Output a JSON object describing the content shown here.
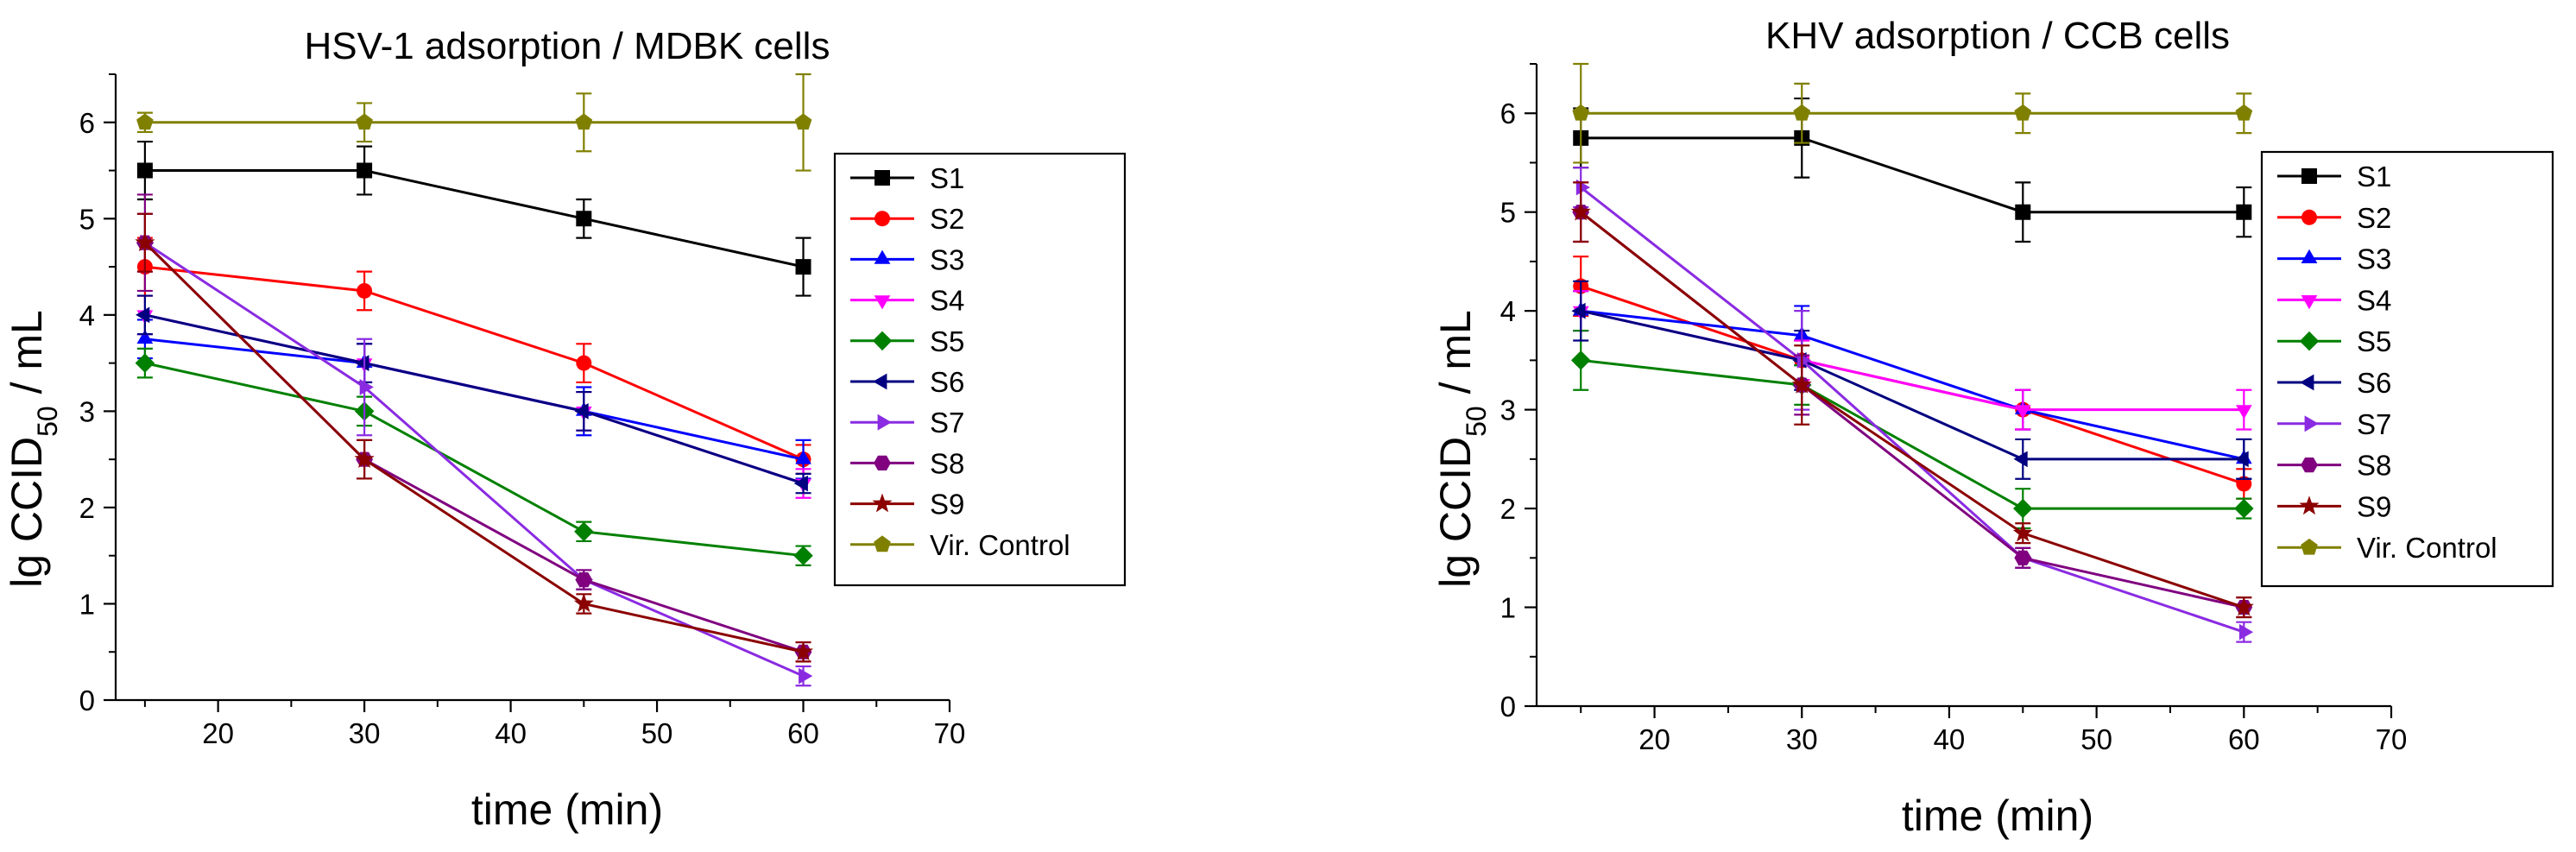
{
  "chart_data": [
    {
      "type": "line",
      "title": "HSV-1 adsorption / MDBK cells",
      "xlabel": "time (min)",
      "ylabel_main": "lg CCID",
      "ylabel_sub": "50",
      "ylabel_tail": " / mL",
      "xlim": [
        13,
        70
      ],
      "ylim": [
        0,
        6.5
      ],
      "xticks": [
        20,
        30,
        40,
        50,
        60,
        70
      ],
      "yticks": [
        0,
        1,
        2,
        3,
        4,
        5,
        6
      ],
      "x": [
        15,
        30,
        45,
        60
      ],
      "legend_position": "right",
      "series": [
        {
          "name": "S1",
          "color": "#000000",
          "marker": "square",
          "values": [
            5.5,
            5.5,
            5.0,
            4.5
          ],
          "errors": [
            0.3,
            0.25,
            0.2,
            0.3
          ]
        },
        {
          "name": "S2",
          "color": "#ff0000",
          "marker": "circle",
          "values": [
            4.5,
            4.25,
            3.5,
            2.5
          ],
          "errors": [
            0.3,
            0.2,
            0.2,
            0.15
          ]
        },
        {
          "name": "S3",
          "color": "#0000ff",
          "marker": "triangle-up",
          "values": [
            3.75,
            3.5,
            3.0,
            2.5
          ],
          "errors": [
            0.2,
            0.2,
            0.25,
            0.2
          ]
        },
        {
          "name": "S4",
          "color": "#ff00ff",
          "marker": "triangle-down",
          "values": [
            4.0,
            3.5,
            3.0,
            2.25
          ],
          "errors": [
            0.2,
            0.2,
            0.2,
            0.15
          ]
        },
        {
          "name": "S5",
          "color": "#008000",
          "marker": "diamond",
          "values": [
            3.5,
            3.0,
            1.75,
            1.5
          ],
          "errors": [
            0.15,
            0.15,
            0.1,
            0.1
          ]
        },
        {
          "name": "S6",
          "color": "#000080",
          "marker": "triangle-left",
          "values": [
            4.0,
            3.5,
            3.0,
            2.25
          ],
          "errors": [
            0.2,
            0.2,
            0.2,
            0.1
          ]
        },
        {
          "name": "S7",
          "color": "#8a2be2",
          "marker": "triangle-right",
          "values": [
            4.75,
            3.25,
            1.25,
            0.25
          ],
          "errors": [
            0.3,
            0.5,
            0.1,
            0.1
          ]
        },
        {
          "name": "S8",
          "color": "#800080",
          "marker": "hexagon",
          "values": [
            4.75,
            2.5,
            1.25,
            0.5
          ],
          "errors": [
            0.5,
            0.2,
            0.1,
            0.1
          ]
        },
        {
          "name": "S9",
          "color": "#8b0000",
          "marker": "star",
          "values": [
            4.75,
            2.5,
            1.0,
            0.5
          ],
          "errors": [
            0.3,
            0.2,
            0.1,
            0.1
          ]
        },
        {
          "name": "Vir. Control",
          "color": "#808000",
          "marker": "pentagon",
          "values": [
            6.0,
            6.0,
            6.0,
            6.0
          ],
          "errors": [
            0.1,
            0.2,
            0.3,
            0.5
          ]
        }
      ]
    },
    {
      "type": "line",
      "title": "KHV adsorption / CCB cells",
      "xlabel": "time (min)",
      "ylabel_main": "lg CCID",
      "ylabel_sub": "50",
      "ylabel_tail": " / mL",
      "xlim": [
        12,
        70
      ],
      "ylim": [
        0,
        6.5
      ],
      "xticks": [
        20,
        30,
        40,
        50,
        60,
        70
      ],
      "yticks": [
        0,
        1,
        2,
        3,
        4,
        5,
        6
      ],
      "x": [
        15,
        30,
        45,
        60
      ],
      "legend_position": "right",
      "series": [
        {
          "name": "S1",
          "color": "#000000",
          "marker": "square",
          "values": [
            5.75,
            5.75,
            5.0,
            5.0
          ],
          "errors": [
            0.3,
            0.4,
            0.3,
            0.25
          ]
        },
        {
          "name": "S2",
          "color": "#ff0000",
          "marker": "circle",
          "values": [
            4.25,
            3.5,
            3.0,
            2.25
          ],
          "errors": [
            0.3,
            0.2,
            0.2,
            0.15
          ]
        },
        {
          "name": "S3",
          "color": "#0000ff",
          "marker": "triangle-up",
          "values": [
            4.0,
            3.75,
            3.0,
            2.5
          ],
          "errors": [
            0.2,
            0.3,
            0.2,
            0.2
          ]
        },
        {
          "name": "S4",
          "color": "#ff00ff",
          "marker": "triangle-down",
          "values": [
            4.0,
            3.5,
            3.0,
            3.0
          ],
          "errors": [
            0.2,
            0.2,
            0.2,
            0.2
          ]
        },
        {
          "name": "S5",
          "color": "#008000",
          "marker": "diamond",
          "values": [
            3.5,
            3.25,
            2.0,
            2.0
          ],
          "errors": [
            0.3,
            0.2,
            0.2,
            0.1
          ]
        },
        {
          "name": "S6",
          "color": "#000080",
          "marker": "triangle-left",
          "values": [
            4.0,
            3.5,
            2.5,
            2.5
          ],
          "errors": [
            0.3,
            0.3,
            0.2,
            0.2
          ]
        },
        {
          "name": "S7",
          "color": "#8a2be2",
          "marker": "triangle-right",
          "values": [
            5.25,
            3.5,
            1.5,
            0.75
          ],
          "errors": [
            0.2,
            0.5,
            0.1,
            0.1
          ]
        },
        {
          "name": "S8",
          "color": "#800080",
          "marker": "hexagon",
          "values": [
            5.0,
            3.25,
            1.5,
            1.0
          ],
          "errors": [
            0.3,
            0.3,
            0.1,
            0.1
          ]
        },
        {
          "name": "S9",
          "color": "#8b0000",
          "marker": "star",
          "values": [
            5.0,
            3.25,
            1.75,
            1.0
          ],
          "errors": [
            0.3,
            0.4,
            0.1,
            0.1
          ]
        },
        {
          "name": "Vir. Control",
          "color": "#808000",
          "marker": "pentagon",
          "values": [
            6.0,
            6.0,
            6.0,
            6.0
          ],
          "errors": [
            0.5,
            0.3,
            0.2,
            0.2
          ]
        }
      ]
    }
  ]
}
